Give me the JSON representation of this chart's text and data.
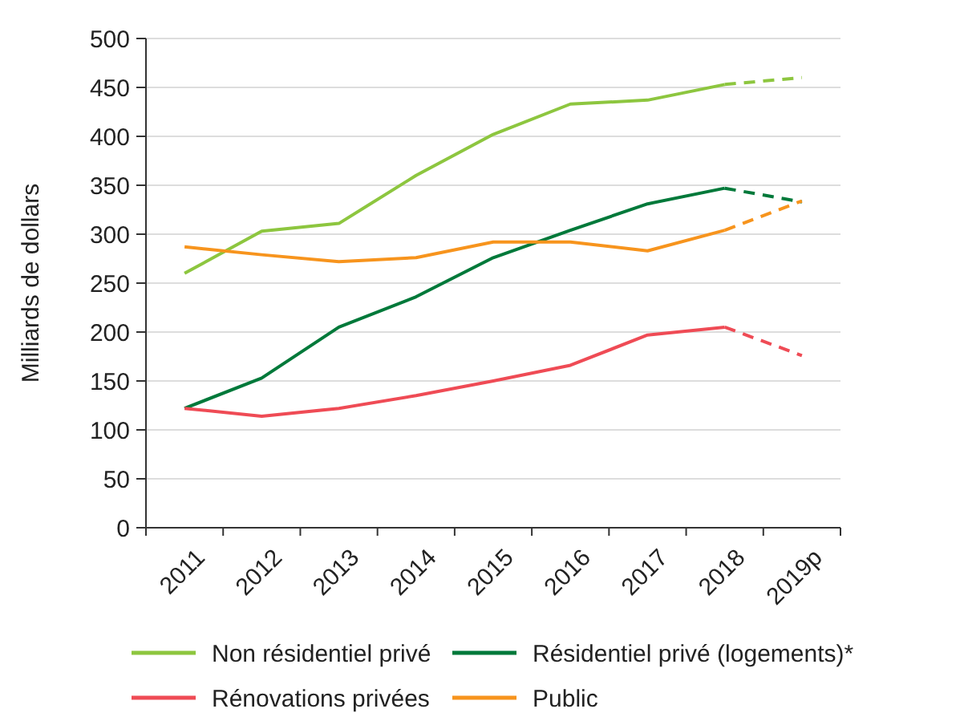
{
  "chart_data": {
    "type": "line",
    "ylabel": "Milliards de dollars",
    "categories": [
      "2011",
      "2012",
      "2013",
      "2014",
      "2015",
      "2016",
      "2017",
      "2018",
      "2019p"
    ],
    "ylim": [
      0,
      500
    ],
    "yticks": [
      0,
      50,
      100,
      150,
      200,
      250,
      300,
      350,
      400,
      450,
      500
    ],
    "grid": "y",
    "legend": "bottom",
    "marker": "none",
    "series": [
      {
        "name": "Non résidentiel privé",
        "color": "#8dc63f",
        "line_style": "solid",
        "values": [
          260,
          303,
          311,
          360,
          402,
          433,
          437,
          453,
          null
        ]
      },
      {
        "name": "Résidentiel privé (logements)*",
        "color": "#00793a",
        "line_style": "solid",
        "values": [
          122,
          153,
          205,
          236,
          276,
          304,
          331,
          347,
          null
        ]
      },
      {
        "name": "Rénovations privées",
        "color": "#ef4b55",
        "line_style": "solid",
        "values": [
          122,
          114,
          122,
          135,
          150,
          166,
          197,
          205,
          null
        ]
      },
      {
        "name": "Public",
        "color": "#f7941d",
        "line_style": "solid",
        "values": [
          287,
          279,
          272,
          276,
          292,
          292,
          283,
          304,
          null
        ]
      },
      {
        "color": "#8dc63f",
        "line_style": "dashed",
        "values": [
          null,
          null,
          null,
          null,
          null,
          null,
          null,
          453,
          460
        ]
      },
      {
        "color": "#00793a",
        "line_style": "dashed",
        "values": [
          null,
          null,
          null,
          null,
          null,
          null,
          null,
          347,
          333
        ]
      },
      {
        "color": "#ef4b55",
        "line_style": "dashed",
        "values": [
          null,
          null,
          null,
          null,
          null,
          null,
          null,
          205,
          176
        ]
      },
      {
        "color": "#f7941d",
        "line_style": "dashed",
        "values": [
          null,
          null,
          null,
          null,
          null,
          null,
          null,
          304,
          334
        ]
      }
    ]
  }
}
